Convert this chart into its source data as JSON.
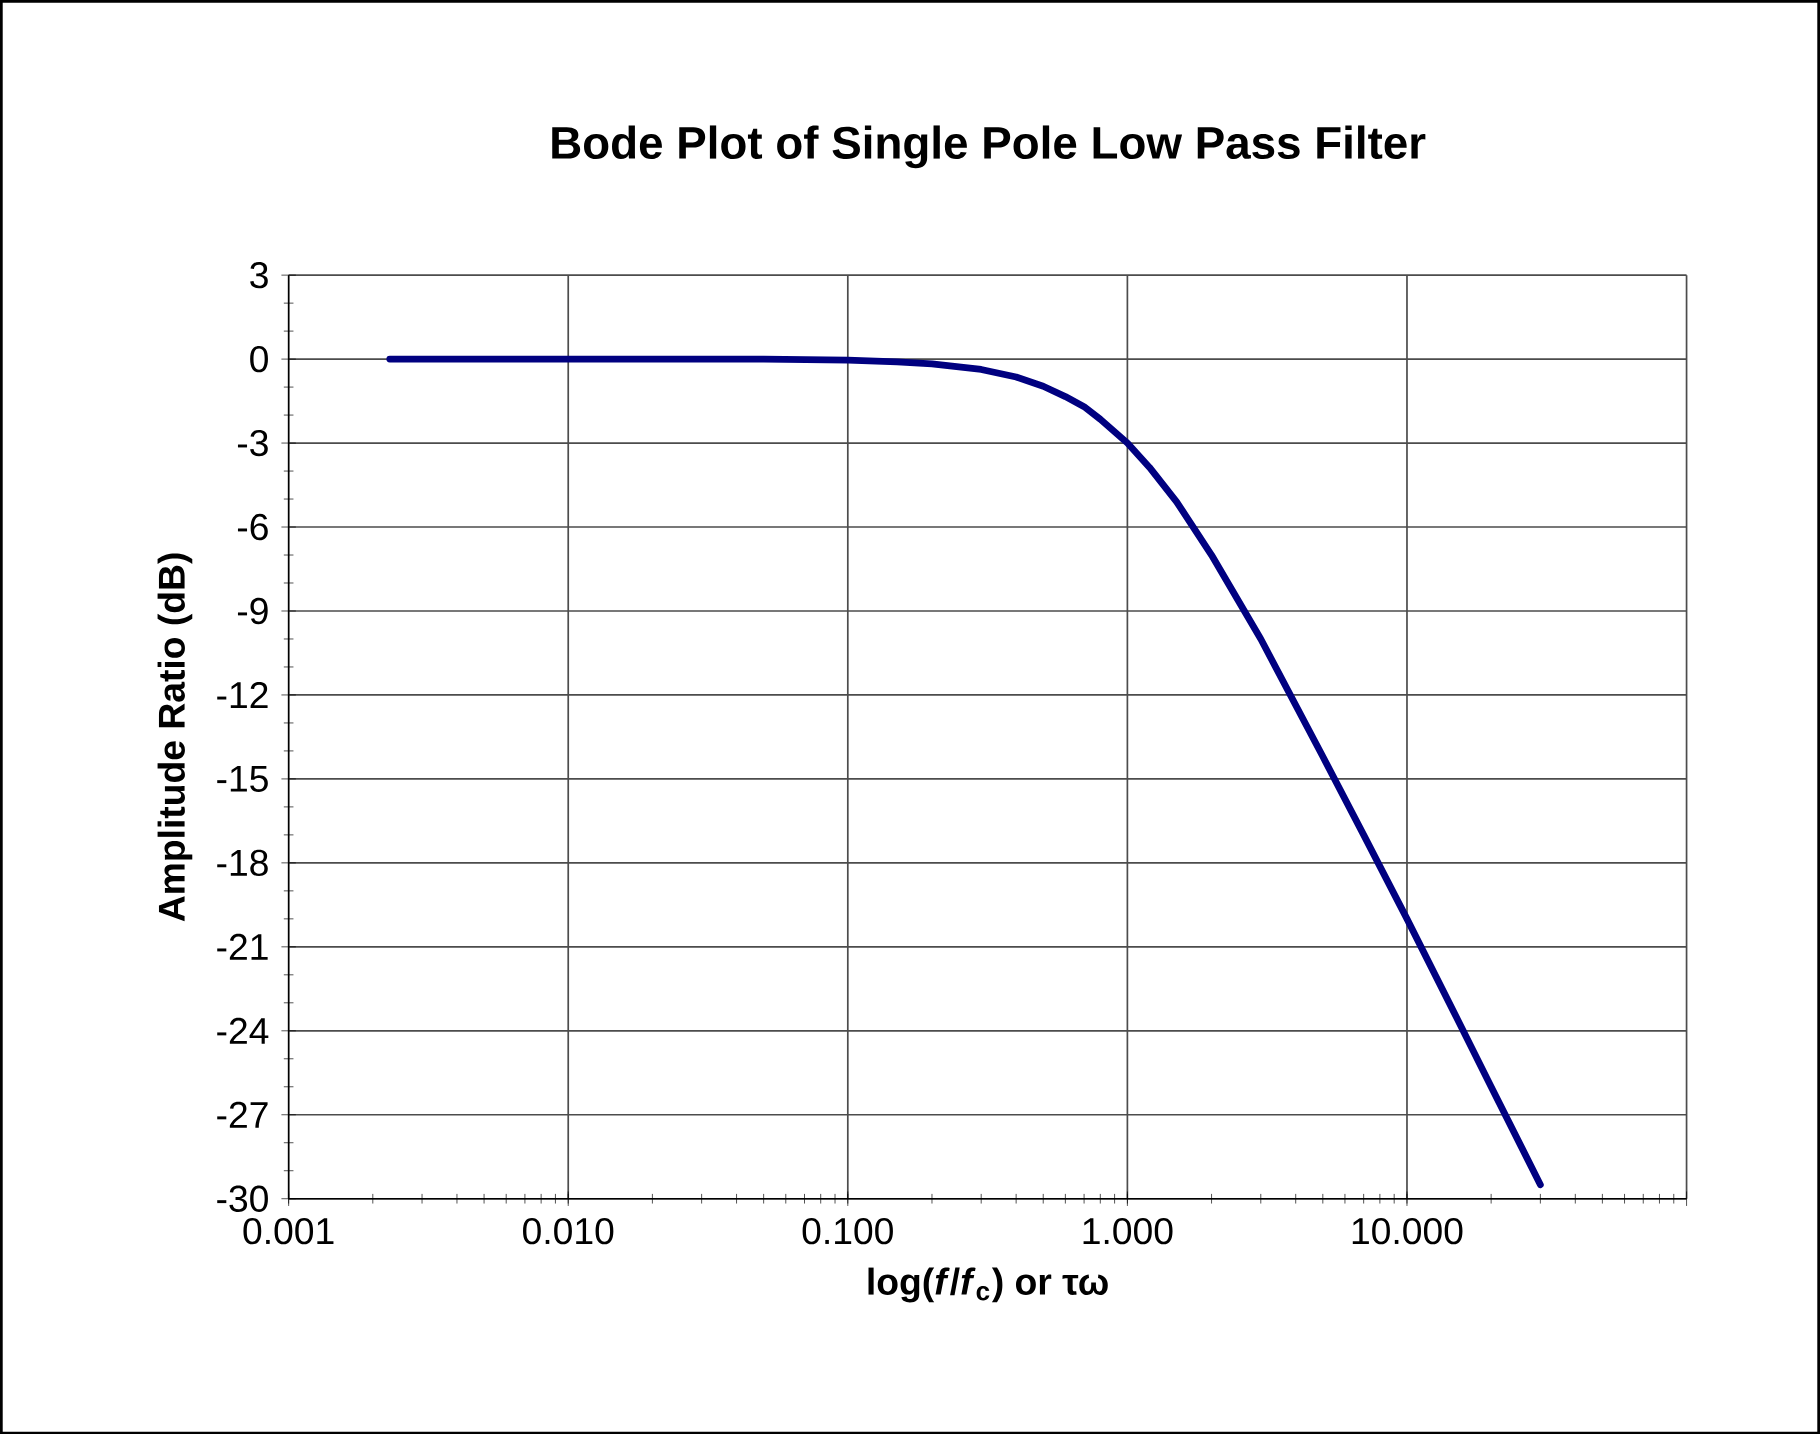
{
  "chart_data": {
    "type": "line",
    "title": "Bode Plot of Single Pole Low Pass Filter",
    "xlabel": "log(*f*/*f*$_{c}$) or τω",
    "ylabel": "Amplitude Ratio (dB)",
    "log": "x",
    "grid": true,
    "marker": "none",
    "line_style": "solid",
    "xlim": [
      0.001,
      100
    ],
    "xticks": [
      {
        "value": 0.001,
        "label": "0.001"
      },
      {
        "value": 0.01,
        "label": "0.010"
      },
      {
        "value": 0.1,
        "label": "0.100"
      },
      {
        "value": 1,
        "label": "1.000"
      },
      {
        "value": 10,
        "label": "10.000"
      },
      {
        "value": 100,
        "label": null
      }
    ],
    "ylim": [
      -30,
      3
    ],
    "yticks": [
      3,
      0,
      -3,
      -6,
      -9,
      -12,
      -15,
      -18,
      -21,
      -24,
      -27,
      -30
    ],
    "series": [
      {
        "color": "#000080",
        "x": [
          0.0023,
          0.01,
          0.05,
          0.1,
          0.15,
          0.2,
          0.3,
          0.4,
          0.5,
          0.6,
          0.7,
          0.8,
          1,
          1.2,
          1.5,
          2,
          3,
          5,
          7,
          10,
          15,
          20,
          30
        ],
        "values": [
          0,
          0,
          0,
          -0.04,
          -0.1,
          -0.17,
          -0.37,
          -0.64,
          -0.97,
          -1.34,
          -1.7,
          -2.15,
          -3,
          -3.87,
          -5.1,
          -7,
          -10,
          -14.2,
          -17,
          -20,
          -23.5,
          -26,
          -29.5
        ]
      }
    ]
  }
}
